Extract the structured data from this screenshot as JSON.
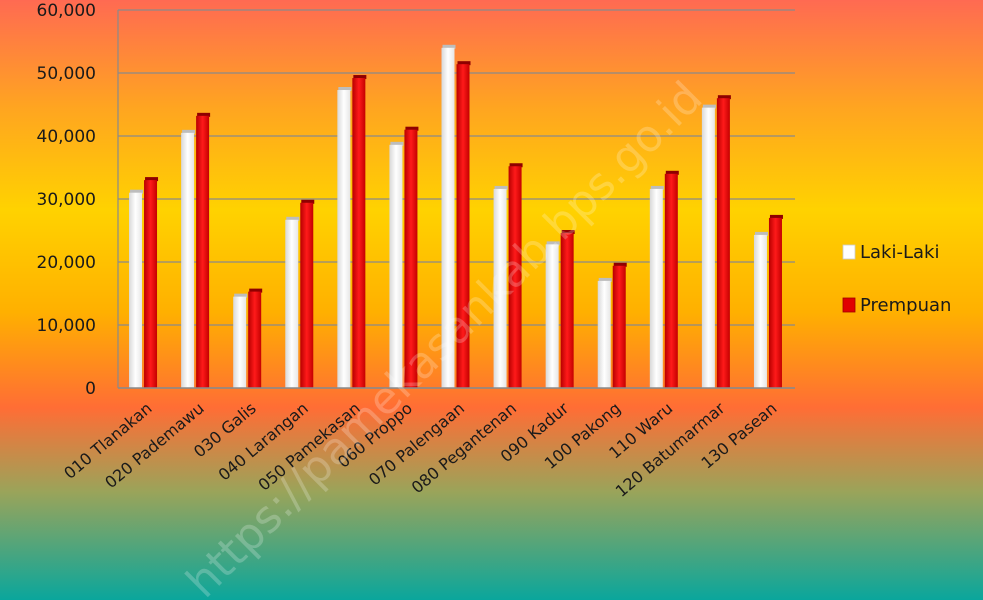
{
  "chart_data": {
    "type": "bar",
    "title": "",
    "xlabel": "",
    "ylabel": "",
    "ylim": [
      0,
      60000
    ],
    "yticks": [
      "0",
      "10,000",
      "20,000",
      "30,000",
      "40,000",
      "50,000",
      "60,000"
    ],
    "grid": true,
    "legend_position": "right",
    "categories": [
      "010 Tlanakan",
      "020 Pademawu",
      "030 Galis",
      "040 Larangan",
      "050 Pamekasan",
      "060 Proppo",
      "070 Palengaan",
      "080 Pegantenan",
      "090 Kadur",
      "100 Pakong",
      "110 Waru",
      "120 Batumarmar",
      "130 Pasean"
    ],
    "series": [
      {
        "name": "Laki-Laki",
        "color": "#ffffff",
        "values": [
          31000,
          40500,
          14500,
          26700,
          47300,
          38600,
          54000,
          31600,
          22800,
          17000,
          31600,
          44500,
          24300
        ]
      },
      {
        "name": "Prempuan",
        "color": "#e10000",
        "values": [
          33000,
          43200,
          15300,
          29400,
          49200,
          41000,
          51400,
          35200,
          24600,
          19400,
          34000,
          46000,
          27000
        ]
      }
    ],
    "watermark": "https://pamekasankab.bps.go.id"
  },
  "colors": {
    "gradient": [
      "#ff6a52",
      "#ffb21c",
      "#ffd200",
      "#ffb000",
      "#ff6a3a",
      "#7fa876",
      "#10a59a"
    ],
    "grid": "#8a8a8a"
  }
}
